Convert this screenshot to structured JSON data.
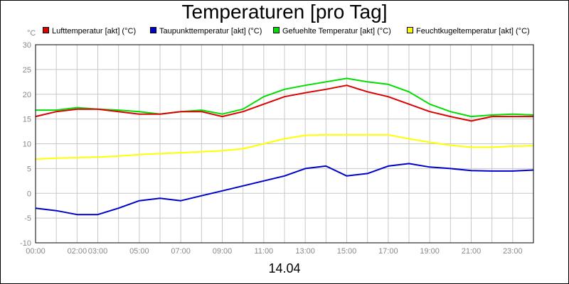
{
  "chart_data": {
    "type": "line",
    "title": "Temperaturen [pro Tag]",
    "ylabel": "°C",
    "xlabel": "14.04",
    "ylim": [
      -10,
      30
    ],
    "xlim": [
      0,
      24
    ],
    "grid": true,
    "legend_position": "top",
    "y_ticks": [
      "-10",
      "-5",
      "0",
      "5",
      "10",
      "15",
      "20",
      "25",
      "30"
    ],
    "x_ticks": [
      {
        "x": 0,
        "label": "00:00"
      },
      {
        "x": 2,
        "label": "02:00"
      },
      {
        "x": 3,
        "label": "03:00"
      },
      {
        "x": 5,
        "label": "05:00"
      },
      {
        "x": 7,
        "label": "07:00"
      },
      {
        "x": 9,
        "label": "09:00"
      },
      {
        "x": 11,
        "label": "11:00"
      },
      {
        "x": 13,
        "label": "13:00"
      },
      {
        "x": 15,
        "label": "15:00"
      },
      {
        "x": 17,
        "label": "17:00"
      },
      {
        "x": 19,
        "label": "19:00"
      },
      {
        "x": 21,
        "label": "21:00"
      },
      {
        "x": 23,
        "label": "23:00"
      }
    ],
    "x": [
      0,
      1,
      2,
      3,
      4,
      5,
      6,
      7,
      8,
      9,
      10,
      11,
      12,
      13,
      14,
      15,
      16,
      17,
      18,
      19,
      20,
      21,
      22,
      23,
      24
    ],
    "series": [
      {
        "name": "Lufttemperatur [akt] (°C)",
        "color": "#dd0000",
        "values": [
          15.5,
          16.5,
          17.0,
          17.0,
          16.5,
          16.0,
          16.0,
          16.5,
          16.5,
          15.5,
          16.5,
          18.0,
          19.5,
          20.3,
          21.0,
          21.8,
          20.5,
          19.5,
          18.0,
          16.5,
          15.5,
          14.6,
          15.5,
          15.5,
          15.5
        ]
      },
      {
        "name": "Taupunkttemperatur [akt] (°C)",
        "color": "#0000cc",
        "values": [
          -3.0,
          -3.5,
          -4.3,
          -4.3,
          -3.0,
          -1.5,
          -1.0,
          -1.5,
          -0.5,
          0.5,
          1.5,
          2.5,
          3.5,
          5.0,
          5.5,
          3.5,
          4.0,
          5.5,
          6.0,
          5.3,
          5.0,
          4.6,
          4.5,
          4.5,
          4.7
        ]
      },
      {
        "name": "Gefuehlte Temperatur [akt] (°C)",
        "color": "#00dd00",
        "values": [
          16.8,
          16.8,
          17.3,
          17.0,
          16.8,
          16.5,
          16.0,
          16.5,
          16.8,
          16.0,
          17.0,
          19.5,
          21.0,
          21.8,
          22.5,
          23.2,
          22.5,
          22.0,
          20.5,
          18.0,
          16.5,
          15.5,
          15.8,
          16.0,
          15.8
        ]
      },
      {
        "name": "Feuchtkugeltemperatur [akt] (°C)",
        "color": "#ffff00",
        "values": [
          6.9,
          7.1,
          7.2,
          7.3,
          7.5,
          7.8,
          8.0,
          8.2,
          8.4,
          8.6,
          9.0,
          10.0,
          11.0,
          11.7,
          11.8,
          11.8,
          11.8,
          11.8,
          11.0,
          10.3,
          9.7,
          9.3,
          9.3,
          9.5,
          9.6
        ]
      }
    ]
  }
}
